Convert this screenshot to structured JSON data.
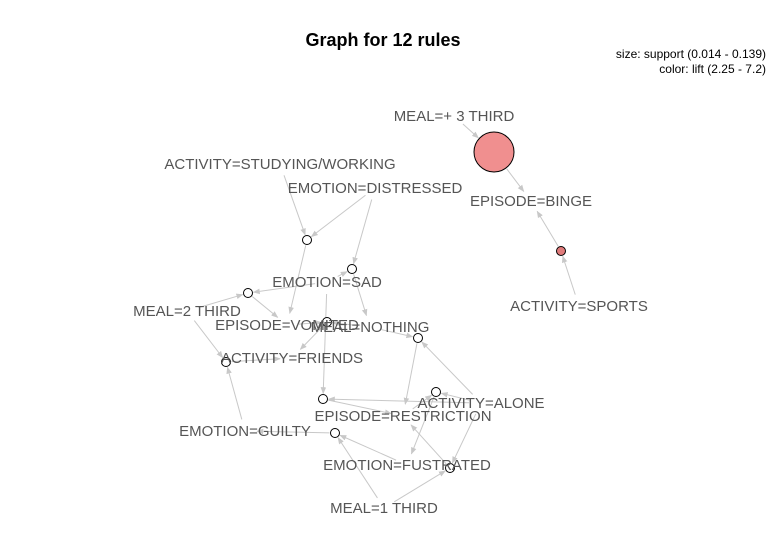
{
  "title": "Graph for 12 rules",
  "legend": {
    "size_text": "size: support (0.014 - 0.139)",
    "color_text": "color: lift (2.25 - 7.2)"
  },
  "colors": {
    "edge": "#c8c8c8",
    "label": "#555555",
    "rule_high_lift": "#f08f8f",
    "rule_mid_lift": "#e07b7b",
    "rule_low_lift": "#ffffff",
    "node_border": "#000000"
  },
  "items": [
    {
      "id": "meal3",
      "label": "MEAL=+  3 THIRD"
    },
    {
      "id": "study",
      "label": "ACTIVITY=STUDYING/WORKING"
    },
    {
      "id": "distressed",
      "label": "EMOTION=DISTRESSED"
    },
    {
      "id": "binge",
      "label": "EPISODE=BINGE"
    },
    {
      "id": "sad",
      "label": "EMOTION=SAD"
    },
    {
      "id": "meal2",
      "label": "MEAL=2 THIRD"
    },
    {
      "id": "vomited",
      "label": "EPISODE=VOMITED"
    },
    {
      "id": "nothing",
      "label": "MEAL=NOTHING"
    },
    {
      "id": "sports",
      "label": "ACTIVITY=SPORTS"
    },
    {
      "id": "friends",
      "label": "ACTIVITY=FRIENDS"
    },
    {
      "id": "alone",
      "label": "ACTIVITY=ALONE"
    },
    {
      "id": "restriction",
      "label": "EPISODE=RESTRICTION"
    },
    {
      "id": "guilty",
      "label": "EMOTION=GUILTY"
    },
    {
      "id": "fustrated",
      "label": "EMOTION=FUSTRATED"
    },
    {
      "id": "meal1",
      "label": "MEAL=1 THIRD"
    }
  ],
  "rules": [
    {
      "id": "r1",
      "lhs": [
        "meal3"
      ],
      "rhs": "binge",
      "support": 0.139,
      "lift": 2.25,
      "fill": "rule_high_lift"
    },
    {
      "id": "r2",
      "lhs": [
        "sports"
      ],
      "rhs": "binge",
      "support": 0.014,
      "lift": 2.4,
      "fill": "rule_mid_lift"
    },
    {
      "id": "r3",
      "lhs": [
        "study",
        "distressed"
      ],
      "rhs": "vomited",
      "support": 0.014,
      "lift": 7.2,
      "fill": "rule_low_lift"
    },
    {
      "id": "r4",
      "lhs": [
        "distressed",
        "sad"
      ],
      "rhs": "nothing",
      "support": 0.014,
      "lift": 7.2,
      "fill": "rule_low_lift"
    },
    {
      "id": "r5",
      "lhs": [
        "sad",
        "meal2"
      ],
      "rhs": "vomited",
      "support": 0.014,
      "lift": 7.2,
      "fill": "rule_low_lift"
    },
    {
      "id": "r6",
      "lhs": [
        "vomited",
        "nothing"
      ],
      "rhs": "friends",
      "support": 0.014,
      "lift": 7.2,
      "fill": "rule_low_lift"
    },
    {
      "id": "r7",
      "lhs": [
        "meal2",
        "guilty"
      ],
      "rhs": "friends",
      "support": 0.014,
      "lift": 7.2,
      "fill": "rule_low_lift"
    },
    {
      "id": "r8",
      "lhs": [
        "nothing",
        "alone"
      ],
      "rhs": "restriction",
      "support": 0.014,
      "lift": 7.2,
      "fill": "rule_low_lift"
    },
    {
      "id": "r9",
      "lhs": [
        "sad",
        "alone"
      ],
      "rhs": "restriction",
      "support": 0.014,
      "lift": 7.2,
      "fill": "rule_low_lift"
    },
    {
      "id": "r10",
      "lhs": [
        "restriction",
        "alone"
      ],
      "rhs": "fustrated",
      "support": 0.014,
      "lift": 7.2,
      "fill": "rule_low_lift"
    },
    {
      "id": "r11",
      "lhs": [
        "meal1",
        "alone"
      ],
      "rhs": "restriction",
      "support": 0.014,
      "lift": 7.2,
      "fill": "rule_low_lift"
    },
    {
      "id": "r12",
      "lhs": [
        "meal1",
        "fustrated"
      ],
      "rhs": "guilty",
      "support": 0.014,
      "lift": 7.2,
      "fill": "rule_low_lift"
    }
  ]
}
